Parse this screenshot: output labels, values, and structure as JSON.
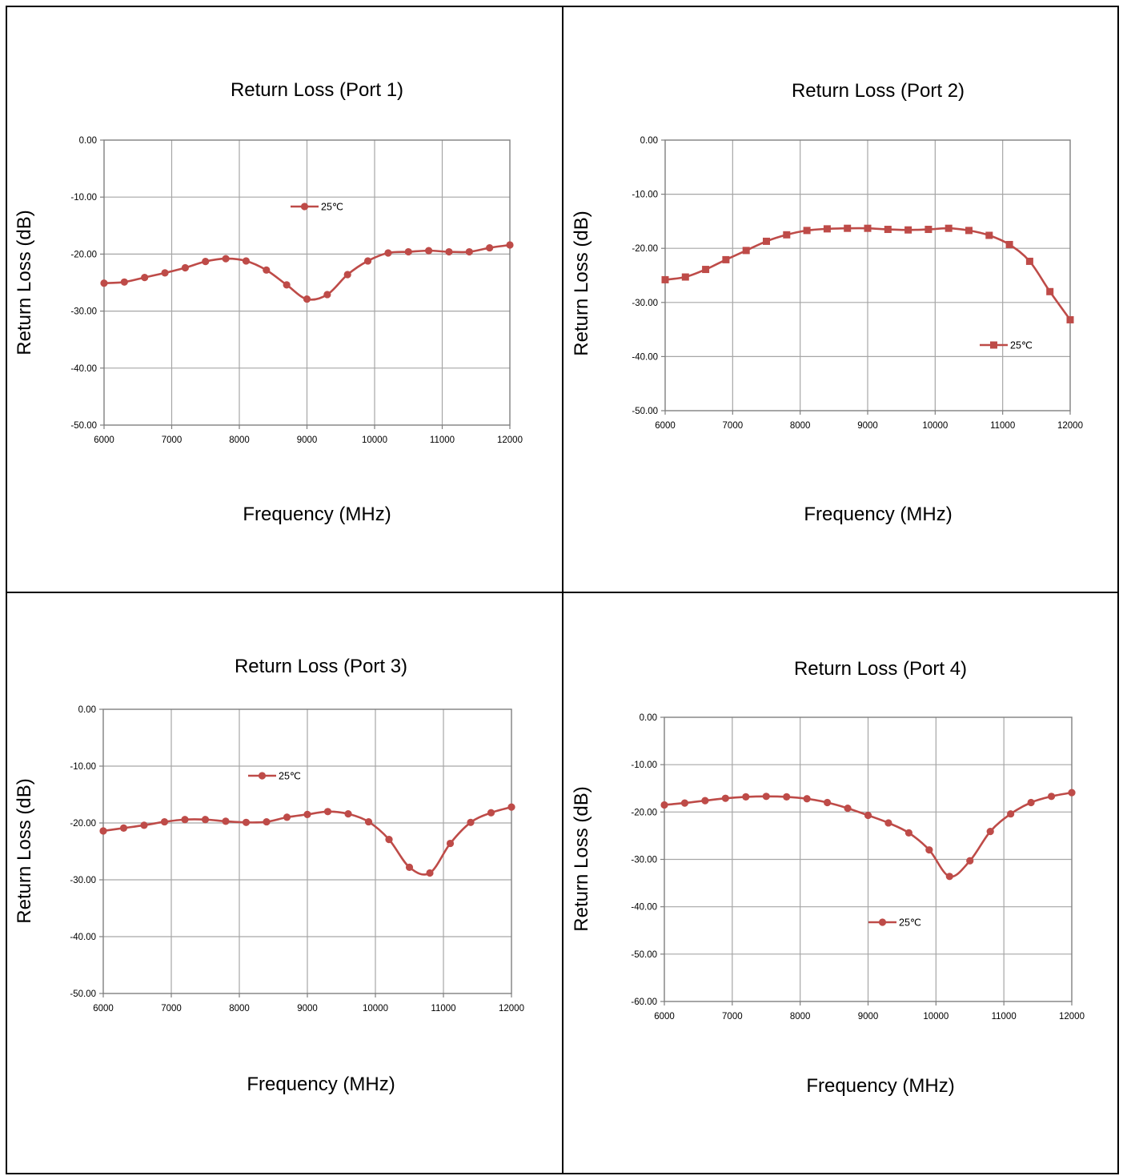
{
  "colors": {
    "series": "#be4b48",
    "grid": "#a6a6a6",
    "axis": "#7f7f7f"
  },
  "chart_data": [
    {
      "type": "line",
      "title": "Return Loss (Port 1)",
      "xlabel": "Frequency (MHz)",
      "ylabel": "Return Loss (dB)",
      "xlim": [
        6000,
        12000
      ],
      "ylim": [
        -50,
        0
      ],
      "x_ticks": [
        "6000",
        "7000",
        "8000",
        "9000",
        "10000",
        "11000",
        "12000"
      ],
      "y_ticks": [
        "0.00",
        "-10.00",
        "-20.00",
        "-30.00",
        "-40.00",
        "-50.00"
      ],
      "legend_position": "top-center",
      "marker": "circle",
      "series": [
        {
          "name": "25℃",
          "x": [
            6000,
            6300,
            6600,
            6900,
            7200,
            7500,
            7800,
            8100,
            8400,
            8700,
            9000,
            9300,
            9600,
            9900,
            10200,
            10500,
            10800,
            11100,
            11400,
            11700,
            12000
          ],
          "values": [
            -25.1,
            -24.9,
            -24.1,
            -23.3,
            -22.4,
            -21.3,
            -20.8,
            -21.2,
            -22.8,
            -25.4,
            -27.9,
            -27.1,
            -23.6,
            -21.2,
            -19.8,
            -19.6,
            -19.4,
            -19.6,
            -19.6,
            -18.9,
            -18.4
          ]
        }
      ]
    },
    {
      "type": "line",
      "title": "Return Loss (Port 2)",
      "xlabel": "Frequency (MHz)",
      "ylabel": "Return Loss (dB)",
      "xlim": [
        6000,
        12000
      ],
      "ylim": [
        -50,
        0
      ],
      "x_ticks": [
        "6000",
        "7000",
        "8000",
        "9000",
        "10000",
        "11000",
        "12000"
      ],
      "y_ticks": [
        "0.00",
        "-10.00",
        "-20.00",
        "-30.00",
        "-40.00",
        "-50.00"
      ],
      "legend_position": "bottom-right",
      "marker": "square",
      "series": [
        {
          "name": "25℃",
          "x": [
            6000,
            6300,
            6600,
            6900,
            7200,
            7500,
            7800,
            8100,
            8400,
            8700,
            9000,
            9300,
            9600,
            9900,
            10200,
            10500,
            10800,
            11100,
            11400,
            11700,
            12000
          ],
          "values": [
            -25.8,
            -25.3,
            -23.9,
            -22.1,
            -20.4,
            -18.7,
            -17.5,
            -16.7,
            -16.4,
            -16.3,
            -16.3,
            -16.5,
            -16.6,
            -16.5,
            -16.3,
            -16.7,
            -17.6,
            -19.3,
            -22.4,
            -28.0,
            -33.2
          ]
        }
      ]
    },
    {
      "type": "line",
      "title": "Return Loss (Port 3)",
      "xlabel": "Frequency (MHz)",
      "ylabel": "Return Loss (dB)",
      "xlim": [
        6000,
        12000
      ],
      "ylim": [
        -50,
        0
      ],
      "x_ticks": [
        "6000",
        "7000",
        "8000",
        "9000",
        "10000",
        "11000",
        "12000"
      ],
      "y_ticks": [
        "0.00",
        "-10.00",
        "-20.00",
        "-30.00",
        "-40.00",
        "-50.00"
      ],
      "legend_position": "top-center",
      "marker": "circle",
      "series": [
        {
          "name": "25℃",
          "x": [
            6000,
            6300,
            6600,
            6900,
            7200,
            7500,
            7800,
            8100,
            8400,
            8700,
            9000,
            9300,
            9600,
            9900,
            10200,
            10500,
            10800,
            11100,
            11400,
            11700,
            12000
          ],
          "values": [
            -21.4,
            -20.9,
            -20.4,
            -19.8,
            -19.4,
            -19.4,
            -19.7,
            -19.9,
            -19.8,
            -19.0,
            -18.5,
            -18.0,
            -18.4,
            -19.8,
            -22.9,
            -27.8,
            -28.8,
            -23.6,
            -19.9,
            -18.2,
            -17.2
          ]
        }
      ]
    },
    {
      "type": "line",
      "title": "Return Loss (Port 4)",
      "xlabel": "Frequency (MHz)",
      "ylabel": "Return Loss (dB)",
      "xlim": [
        6000,
        12000
      ],
      "ylim": [
        -60,
        0
      ],
      "x_ticks": [
        "6000",
        "7000",
        "8000",
        "9000",
        "10000",
        "11000",
        "12000"
      ],
      "y_ticks": [
        "0.00",
        "-10.00",
        "-20.00",
        "-30.00",
        "-40.00",
        "-50.00",
        "-60.00"
      ],
      "legend_position": "bottom-center",
      "marker": "circle",
      "series": [
        {
          "name": "25℃",
          "x": [
            6000,
            6300,
            6600,
            6900,
            7200,
            7500,
            7800,
            8100,
            8400,
            8700,
            9000,
            9300,
            9600,
            9900,
            10200,
            10500,
            10800,
            11100,
            11400,
            11700,
            12000
          ],
          "values": [
            -18.5,
            -18.1,
            -17.6,
            -17.1,
            -16.8,
            -16.7,
            -16.8,
            -17.2,
            -18.0,
            -19.2,
            -20.7,
            -22.3,
            -24.4,
            -28.0,
            -33.6,
            -30.3,
            -24.1,
            -20.4,
            -18.0,
            -16.7,
            -15.9
          ]
        }
      ]
    }
  ]
}
